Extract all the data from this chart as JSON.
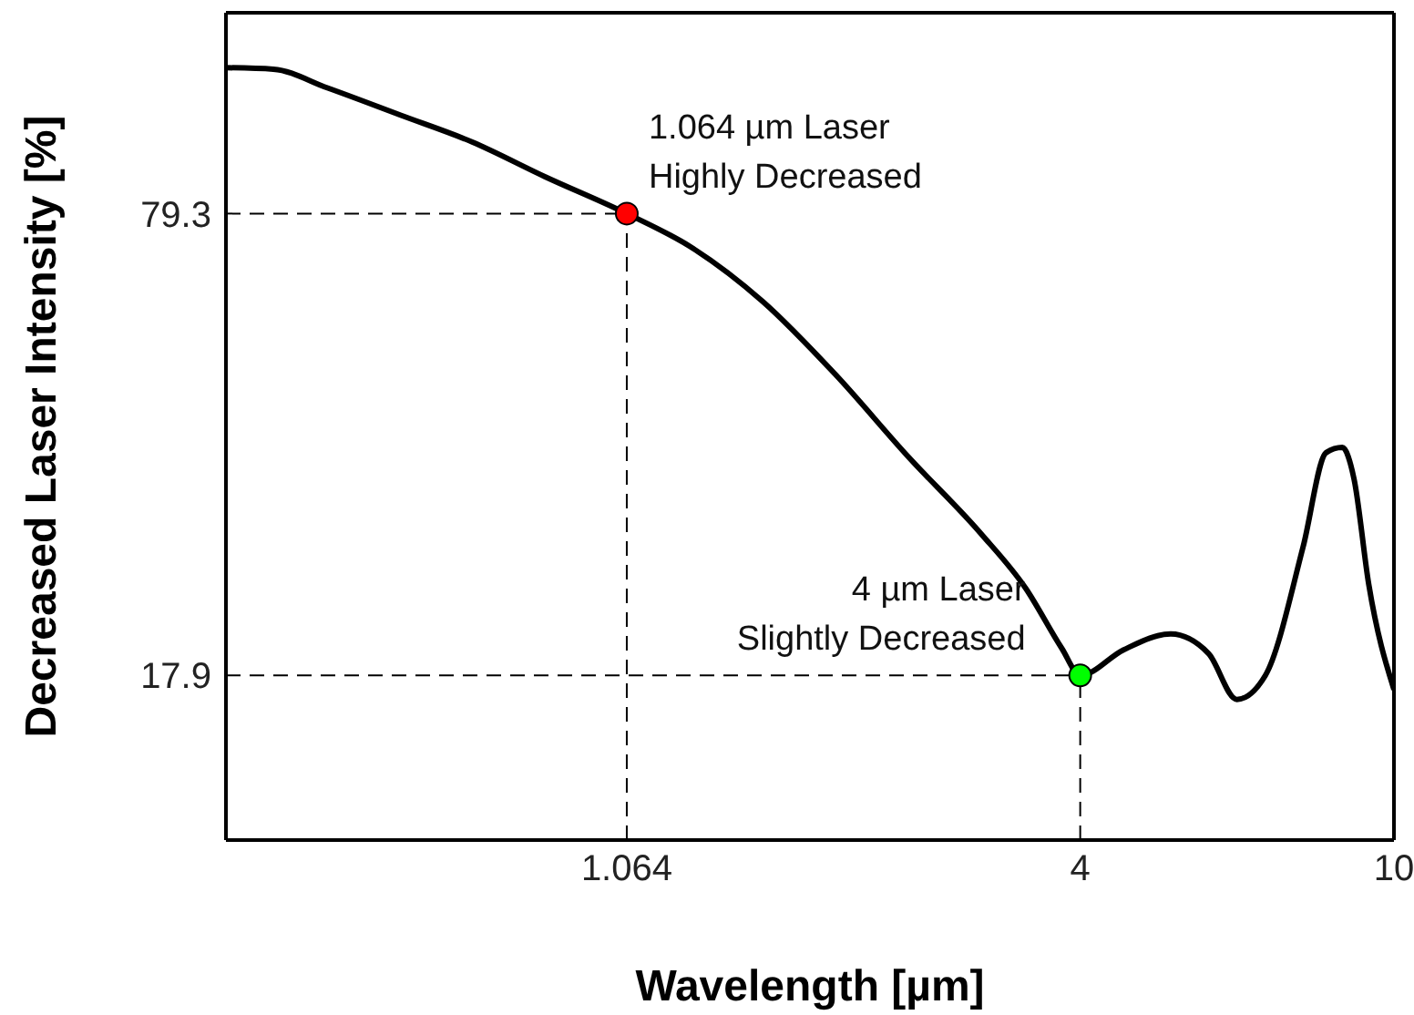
{
  "chart_data": {
    "type": "line",
    "xlabel": "Wavelength [µm]",
    "ylabel": "Decreased Laser Intensity [%]",
    "log": "x",
    "xlim": [
      0.33,
      10
    ],
    "xticks": [
      1.064,
      4,
      10
    ],
    "ylim": [
      -4,
      106
    ],
    "yticks": [
      79.3,
      17.9
    ],
    "marker": "none",
    "line_style": "solid",
    "series": [
      {
        "color": "#000000",
        "x": [
          0.33,
          0.379,
          0.444,
          0.549,
          0.678,
          0.838,
          1.064,
          1.281,
          1.583,
          1.957,
          2.419,
          2.99,
          3.41,
          3.79,
          4,
          4.54,
          5.21,
          5.82,
          6.32,
          6.87,
          7.67,
          8.2,
          8.6,
          8.9,
          9.29,
          10
        ],
        "values": [
          98.7,
          98.5,
          96.0,
          92.4,
          88.8,
          84.2,
          79.3,
          74.9,
          67.6,
          57.9,
          47.0,
          36.8,
          29.5,
          21.5,
          17.9,
          21.3,
          23.4,
          20.8,
          14.7,
          17.9,
          35.0,
          47.5,
          48.2,
          44.0,
          30.0,
          16.0
        ]
      },
      {
        "type": "scatter",
        "marker": "circle",
        "x": [
          1.064,
          4
        ],
        "values": [
          79.3,
          17.9
        ],
        "colors": [
          "#ff0000",
          "#00ff00"
        ]
      }
    ],
    "ref_lines": [
      {
        "axis": "x",
        "value": 1.064,
        "line_style": "dashed",
        "color": "#000000"
      },
      {
        "axis": "y",
        "value": 79.3,
        "line_style": "dashed",
        "color": "#000000"
      },
      {
        "axis": "x",
        "value": 4,
        "line_style": "dashed",
        "color": "#000000"
      },
      {
        "axis": "y",
        "value": 17.9,
        "line_style": "dashed",
        "color": "#000000"
      }
    ],
    "annotations": [
      {
        "text": "1.064 µm Laser\nHighly Decreased",
        "x": 1.064,
        "y": 79.3
      },
      {
        "text": "4 µm Laser\nSlightly Decreased",
        "x": 4,
        "y": 17.9
      }
    ]
  }
}
